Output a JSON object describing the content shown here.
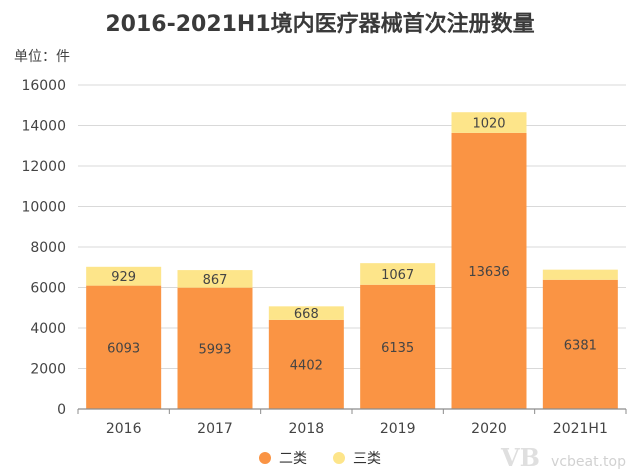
{
  "chart_data": {
    "type": "bar",
    "stacked": true,
    "title": "2016-2021H1境内医疗器械首次注册数量",
    "unit_label": "单位：件",
    "categories": [
      "2016",
      "2017",
      "2018",
      "2019",
      "2020",
      "2021H1"
    ],
    "series": [
      {
        "name": "二类",
        "color": "#fa9444",
        "values": [
          6093,
          5993,
          4402,
          6135,
          13636,
          6381
        ]
      },
      {
        "name": "三类",
        "color": "#fde58a",
        "values": [
          929,
          867,
          668,
          1067,
          1020,
          500
        ]
      }
    ],
    "data_labels": [
      [
        "6093",
        "5993",
        "4402",
        "6135",
        "13636",
        "6381"
      ],
      [
        "929",
        "867",
        "668",
        "1067",
        "1020",
        ""
      ]
    ],
    "ylim": [
      0,
      16000
    ],
    "yticks": [
      0,
      2000,
      4000,
      6000,
      8000,
      10000,
      12000,
      14000,
      16000
    ],
    "grid": true,
    "legend_position": "bottom"
  },
  "watermark": {
    "logo": "VB",
    "url": "vcbeat.top"
  }
}
